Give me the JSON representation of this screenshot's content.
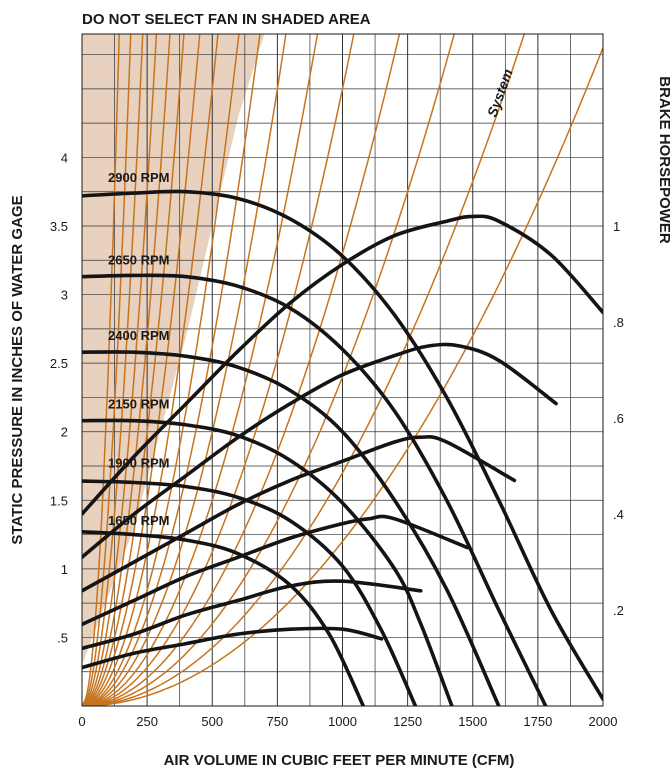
{
  "chart_data": {
    "type": "line",
    "title": "DO NOT SELECT FAN IN SHADED AREA",
    "xlabel": "AIR VOLUME IN CUBIC FEET PER MINUTE (CFM)",
    "ylabel": "STATIC PRESSURE IN INCHES OF WATER GAGE",
    "y2label": "BRAKE HORSEPOWER",
    "system_label": "System",
    "xlim": [
      0,
      2000
    ],
    "ylim": [
      0,
      4.9
    ],
    "y2lim": [
      0,
      1.4
    ],
    "grid": true,
    "x_ticks": [
      "0",
      "250",
      "500",
      "750",
      "1000",
      "1250",
      "1500",
      "1750",
      "2000"
    ],
    "x_tick_values": [
      0,
      250,
      500,
      750,
      1000,
      1250,
      1500,
      1750,
      2000
    ],
    "y_ticks": [
      ".5",
      "1",
      "1.5",
      "2",
      "2.5",
      "3",
      "3.5",
      "4"
    ],
    "y_tick_values": [
      0.5,
      1,
      1.5,
      2,
      2.5,
      3,
      3.5,
      4
    ],
    "y2_ticks": [
      ".2",
      ".4",
      ".6",
      ".8",
      "1"
    ],
    "y2_tick_values": [
      0.2,
      0.4,
      0.6,
      0.8,
      1.0
    ],
    "shaded_region_boundary": [
      [
        0,
        0.3
      ],
      [
        120,
        0.9
      ],
      [
        200,
        1.3
      ],
      [
        300,
        2.0
      ],
      [
        400,
        2.7
      ],
      [
        500,
        3.5
      ],
      [
        600,
        4.3
      ],
      [
        700,
        4.9
      ],
      [
        0,
        4.9
      ]
    ],
    "colors": {
      "grid": "#333333",
      "system_curves": "#c8741e",
      "shading": "#e8d2bf",
      "curves": "#141414"
    },
    "system_curve_k": [
      1.2e-06,
      1.7e-06,
      2.4e-06,
      3.3e-06,
      4.5e-06,
      6e-06,
      8e-06,
      1.05e-05,
      1.35e-05,
      1.8e-05,
      2.4e-05,
      3.2e-05,
      4.3e-05,
      6e-05,
      9e-05,
      0.00014,
      0.00024
    ],
    "rpm_labels": [
      {
        "label": "2900 RPM",
        "x": 100,
        "y": 3.82
      },
      {
        "label": "2650 RPM",
        "x": 100,
        "y": 3.22
      },
      {
        "label": "2400 RPM",
        "x": 100,
        "y": 2.67
      },
      {
        "label": "2150 RPM",
        "x": 100,
        "y": 2.17
      },
      {
        "label": "1900 RPM",
        "x": 100,
        "y": 1.74
      },
      {
        "label": "1650 RPM",
        "x": 100,
        "y": 1.32
      }
    ],
    "series": [
      {
        "name": "2900 RPM",
        "axis": "static_pressure",
        "x": [
          0,
          200,
          400,
          600,
          800,
          1000,
          1200,
          1400,
          1600,
          1800,
          2000
        ],
        "y": [
          3.72,
          3.74,
          3.75,
          3.7,
          3.55,
          3.28,
          2.85,
          2.25,
          1.5,
          0.7,
          0.05
        ]
      },
      {
        "name": "2650 RPM",
        "axis": "static_pressure",
        "x": [
          0,
          200,
          400,
          600,
          800,
          1000,
          1200,
          1400,
          1600,
          1780
        ],
        "y": [
          3.13,
          3.14,
          3.13,
          3.06,
          2.9,
          2.6,
          2.15,
          1.5,
          0.7,
          0.0
        ]
      },
      {
        "name": "2400 RPM",
        "axis": "static_pressure",
        "x": [
          0,
          200,
          400,
          600,
          800,
          1000,
          1200,
          1400,
          1600
        ],
        "y": [
          2.58,
          2.58,
          2.55,
          2.47,
          2.3,
          2.0,
          1.5,
          0.85,
          0.0
        ]
      },
      {
        "name": "2150 RPM",
        "axis": "static_pressure",
        "x": [
          0,
          200,
          400,
          600,
          800,
          1000,
          1200,
          1300,
          1420
        ],
        "y": [
          2.08,
          2.08,
          2.05,
          1.97,
          1.79,
          1.48,
          1.0,
          0.6,
          0.0
        ]
      },
      {
        "name": "1900 RPM",
        "axis": "static_pressure",
        "x": [
          0,
          200,
          400,
          600,
          800,
          1000,
          1150,
          1280
        ],
        "y": [
          1.64,
          1.63,
          1.6,
          1.52,
          1.35,
          1.02,
          0.55,
          0.0
        ]
      },
      {
        "name": "1650 RPM",
        "axis": "static_pressure",
        "x": [
          0,
          200,
          400,
          600,
          800,
          950,
          1080
        ],
        "y": [
          1.27,
          1.25,
          1.21,
          1.11,
          0.88,
          0.52,
          0.0
        ]
      },
      {
        "name": "BHP 2900 RPM",
        "axis": "brake_horsepower",
        "x": [
          0,
          200,
          400,
          600,
          800,
          1000,
          1200,
          1400,
          1500,
          1600,
          1800,
          2000
        ],
        "y": [
          0.4,
          0.52,
          0.63,
          0.74,
          0.84,
          0.92,
          0.98,
          1.01,
          1.02,
          1.01,
          0.94,
          0.82
        ]
      },
      {
        "name": "BHP 2650 RPM",
        "axis": "brake_horsepower",
        "x": [
          0,
          200,
          400,
          600,
          800,
          1000,
          1200,
          1330,
          1450,
          1600,
          1820
        ],
        "y": [
          0.31,
          0.4,
          0.48,
          0.56,
          0.63,
          0.69,
          0.73,
          0.75,
          0.75,
          0.72,
          0.63
        ]
      },
      {
        "name": "BHP 2400 RPM",
        "axis": "brake_horsepower",
        "x": [
          0,
          200,
          400,
          600,
          800,
          1000,
          1200,
          1300,
          1400,
          1660
        ],
        "y": [
          0.24,
          0.3,
          0.36,
          0.42,
          0.47,
          0.51,
          0.55,
          0.56,
          0.55,
          0.47
        ]
      },
      {
        "name": "BHP 2150 RPM",
        "axis": "brake_horsepower",
        "x": [
          0,
          200,
          400,
          600,
          800,
          1000,
          1100,
          1200,
          1480
        ],
        "y": [
          0.17,
          0.22,
          0.27,
          0.31,
          0.35,
          0.38,
          0.39,
          0.39,
          0.33
        ]
      },
      {
        "name": "BHP 1900 RPM",
        "axis": "brake_horsepower",
        "x": [
          0,
          200,
          400,
          600,
          800,
          1000,
          1300
        ],
        "y": [
          0.12,
          0.15,
          0.19,
          0.22,
          0.25,
          0.26,
          0.24
        ]
      },
      {
        "name": "BHP 1650 RPM",
        "axis": "brake_horsepower",
        "x": [
          0,
          200,
          400,
          600,
          800,
          1000,
          1150
        ],
        "y": [
          0.08,
          0.11,
          0.13,
          0.15,
          0.16,
          0.16,
          0.14
        ]
      }
    ]
  }
}
